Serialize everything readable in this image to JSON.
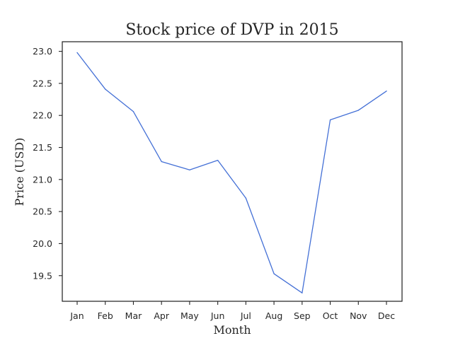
{
  "chart_data": {
    "type": "line",
    "title": "Stock price of DVP in 2015",
    "xlabel": "Month",
    "ylabel": "Price (USD)",
    "categories": [
      "Jan",
      "Feb",
      "Mar",
      "Apr",
      "May",
      "Jun",
      "Jul",
      "Aug",
      "Sep",
      "Oct",
      "Nov",
      "Dec"
    ],
    "series": [
      {
        "values": [
          22.98,
          22.41,
          22.06,
          21.28,
          21.15,
          21.3,
          20.71,
          19.53,
          19.23,
          21.93,
          22.08,
          22.38
        ]
      }
    ],
    "yticks": [
      "19.5",
      "20.0",
      "20.5",
      "21.0",
      "21.5",
      "22.0",
      "22.5",
      "23.0"
    ],
    "ylim": [
      19.1,
      23.15
    ],
    "grid": false,
    "colors": {
      "line": "#4470d6",
      "axis": "#262626"
    }
  }
}
